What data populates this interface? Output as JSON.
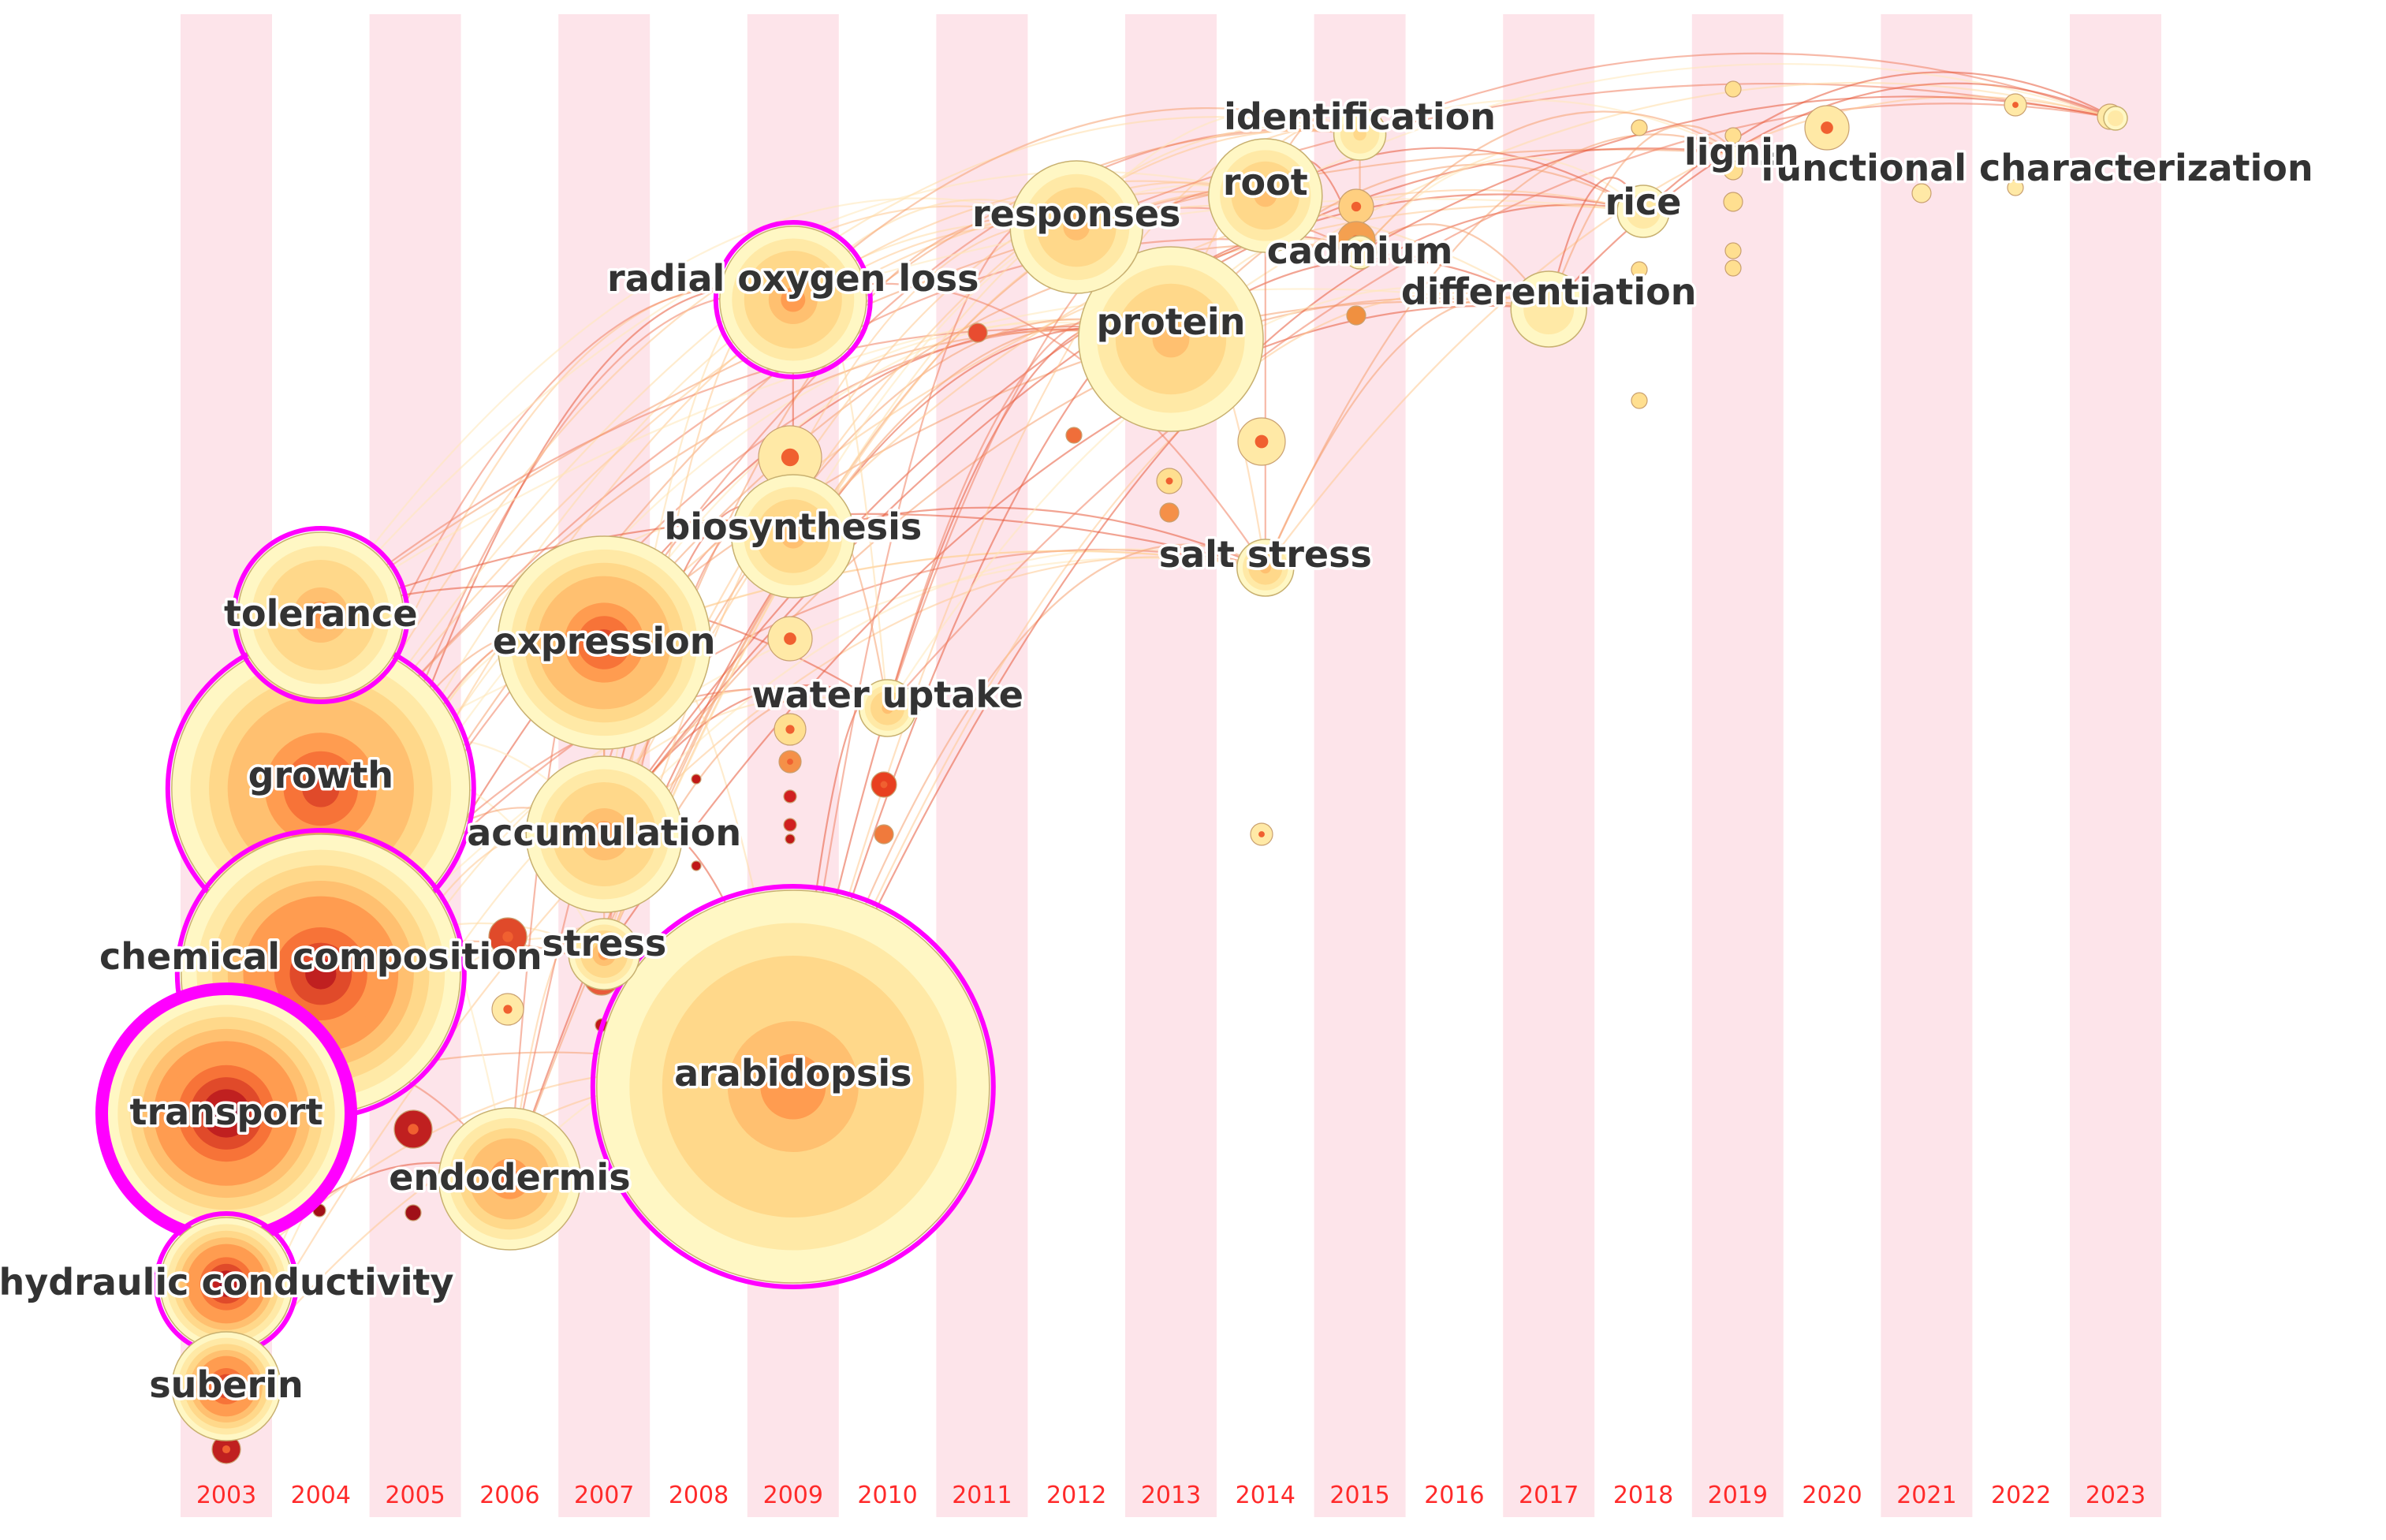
{
  "colors": {
    "stripe": "#fde4ea",
    "year_text": "#ff2a2a",
    "centrality_ring": "#ff00ff",
    "label_text": "#333333",
    "ring_ramp": [
      "#fff7c4",
      "#ffe9a6",
      "#ffd88a",
      "#ffc070",
      "#ff9c50",
      "#f77338",
      "#e04a2a",
      "#c02020",
      "#8c0c28"
    ]
  },
  "timeline": {
    "years": [
      "2003",
      "2004",
      "2005",
      "2006",
      "2007",
      "2008",
      "2009",
      "2010",
      "2011",
      "2012",
      "2013",
      "2014",
      "2015",
      "2016",
      "2017",
      "2018",
      "2019",
      "2020",
      "2021",
      "2022",
      "2023"
    ]
  },
  "keywords": [
    {
      "label": "transport",
      "year": "2003",
      "size": 5.1,
      "burst": true,
      "heat": 8
    },
    {
      "label": "hydraulic conductivity",
      "year": "2003",
      "size": 2.8,
      "burst": true,
      "heat": 8
    },
    {
      "label": "suberin",
      "year": "2003",
      "size": 2.3,
      "burst": false,
      "heat": 7
    },
    {
      "label": "growth",
      "year": "2004",
      "size": 6.3,
      "burst": true,
      "heat": 6
    },
    {
      "label": "chemical composition",
      "year": "2004",
      "size": 5.9,
      "burst": true,
      "heat": 7
    },
    {
      "label": "tolerance",
      "year": "2004",
      "size": 3.5,
      "burst": true,
      "heat": 4
    },
    {
      "label": "endodermis",
      "year": "2006",
      "size": 3.0,
      "burst": false,
      "heat": 5
    },
    {
      "label": "expression",
      "year": "2007",
      "size": 4.5,
      "burst": false,
      "heat": 6
    },
    {
      "label": "accumulation",
      "year": "2007",
      "size": 3.3,
      "burst": false,
      "heat": 4
    },
    {
      "label": "stress",
      "year": "2007",
      "size": 1.5,
      "burst": false,
      "heat": 4
    },
    {
      "label": "arabidopsis",
      "year": "2009",
      "size": 8.3,
      "burst": true,
      "heat": 4
    },
    {
      "label": "radial oxygen loss",
      "year": "2009",
      "size": 3.1,
      "burst": true,
      "heat": 4
    },
    {
      "label": "biosynthesis",
      "year": "2009",
      "size": 2.6,
      "burst": false,
      "heat": 3
    },
    {
      "label": "water uptake",
      "year": "2010",
      "size": 1.2,
      "burst": false,
      "heat": 3
    },
    {
      "label": "responses",
      "year": "2012",
      "size": 2.8,
      "burst": false,
      "heat": 3
    },
    {
      "label": "protein",
      "year": "2013",
      "size": 3.9,
      "burst": false,
      "heat": 3
    },
    {
      "label": "root",
      "year": "2014",
      "size": 2.4,
      "burst": false,
      "heat": 3
    },
    {
      "label": "salt stress",
      "year": "2014",
      "size": 1.2,
      "burst": false,
      "heat": 3
    },
    {
      "label": "identification",
      "year": "2015",
      "size": 1.1,
      "burst": false,
      "heat": 2
    },
    {
      "label": "cadmium",
      "year": "2015",
      "size": 0.7,
      "burst": false,
      "heat": 2
    },
    {
      "label": "differentiation",
      "year": "2017",
      "size": 1.6,
      "burst": false,
      "heat": 1
    },
    {
      "label": "rice",
      "year": "2018",
      "size": 1.1,
      "burst": false,
      "heat": 1
    },
    {
      "label": "lignin",
      "year": "2019",
      "size": 0.3,
      "burst": false,
      "heat": 1
    },
    {
      "label": "functional characterization",
      "year": "2023",
      "size": 0.5,
      "burst": false,
      "heat": 1
    }
  ]
}
